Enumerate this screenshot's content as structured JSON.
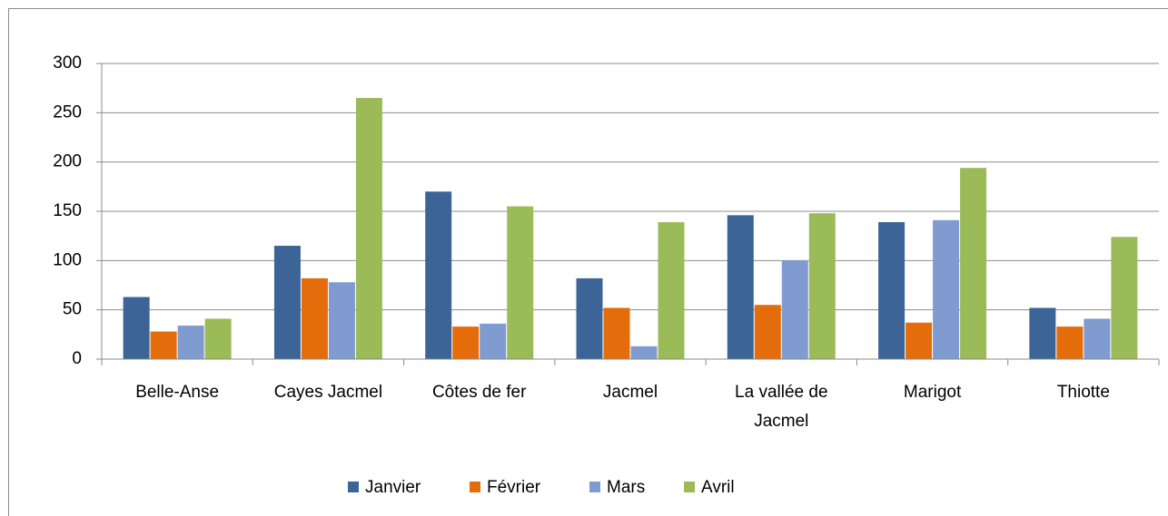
{
  "chart_data": {
    "type": "bar",
    "categories": [
      "Belle-Anse",
      "Cayes Jacmel",
      "Côtes de fer",
      "Jacmel",
      "La vallée de Jacmel",
      "Marigot",
      "Thiotte"
    ],
    "series": [
      {
        "name": "Janvier",
        "color": "#3c6497",
        "values": [
          63,
          115,
          170,
          82,
          146,
          139,
          52
        ]
      },
      {
        "name": "Février",
        "color": "#e46c0a",
        "values": [
          28,
          82,
          33,
          52,
          55,
          37,
          33
        ]
      },
      {
        "name": "Mars",
        "color": "#7f9bd0",
        "values": [
          34,
          78,
          36,
          13,
          100,
          141,
          41
        ]
      },
      {
        "name": "Avril",
        "color": "#9bbb59",
        "values": [
          41,
          265,
          155,
          139,
          148,
          194,
          124
        ]
      }
    ],
    "ylim": [
      0,
      300
    ],
    "yticks": [
      0,
      50,
      100,
      150,
      200,
      250,
      300
    ],
    "grid": true,
    "legend": "bottom"
  }
}
